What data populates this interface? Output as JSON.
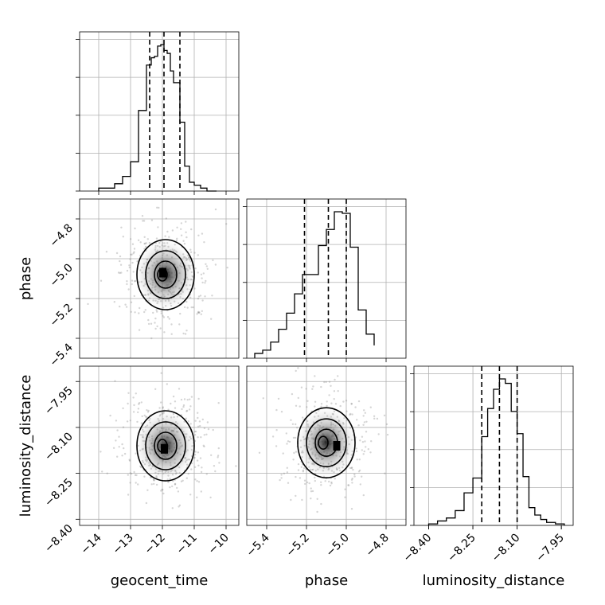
{
  "chart_data": {
    "type": "corner",
    "parameters": [
      {
        "name": "geocent_time",
        "xlim": [
          -14.6,
          -9.6
        ],
        "ticks": [
          -14,
          -13,
          -12,
          -11,
          -10
        ],
        "tick_labels": [
          "−14",
          "−13",
          "−12",
          "−11",
          "−10"
        ],
        "quantiles": [
          -12.4,
          -11.95,
          -11.45
        ],
        "hist": {
          "edges": [
            -14.0,
            -13.5,
            -13.25,
            -13.0,
            -12.75,
            -12.5,
            -12.35,
            -12.25,
            -12.15,
            -12.05,
            -11.95,
            -11.85,
            -11.75,
            -11.65,
            -11.55,
            -11.45,
            -11.3,
            -11.15,
            -11.0,
            -10.8,
            -10.6,
            -10.3
          ],
          "counts": [
            0.02,
            0.05,
            0.1,
            0.2,
            0.55,
            0.86,
            0.91,
            0.92,
            0.99,
            1.0,
            0.96,
            0.94,
            0.82,
            0.74,
            0.74,
            0.47,
            0.17,
            0.06,
            0.04,
            0.02,
            0.0
          ]
        }
      },
      {
        "name": "phase",
        "ylim": [
          -5.5,
          -4.7
        ],
        "xlim": [
          -5.5,
          -4.7
        ],
        "ticks": [
          -5.4,
          -5.2,
          -5.0,
          -4.8
        ],
        "tick_labels": [
          "−5.4",
          "−5.2",
          "−5.0",
          "−4.8"
        ],
        "quantiles": [
          -5.21,
          -5.09,
          -5.0
        ],
        "hist": {
          "edges": [
            -5.46,
            -5.42,
            -5.38,
            -5.34,
            -5.3,
            -5.26,
            -5.22,
            -5.18,
            -5.14,
            -5.1,
            -5.06,
            -5.02,
            -4.98,
            -4.94,
            -4.9,
            -4.86
          ],
          "counts": [
            0.03,
            0.05,
            0.1,
            0.18,
            0.28,
            0.4,
            0.52,
            0.52,
            0.7,
            0.8,
            0.91,
            0.9,
            0.69,
            0.3,
            0.15,
            0.08
          ]
        }
      },
      {
        "name": "luminosity_distance",
        "ylim": [
          -8.42,
          -7.9
        ],
        "xlim": [
          -8.45,
          -7.91
        ],
        "ticks": [
          -8.4,
          -8.25,
          -8.1,
          -7.95
        ],
        "tick_labels": [
          "−8.40",
          "−8.25",
          "−8.10",
          "−7.95"
        ],
        "quantiles": [
          -8.22,
          -8.16,
          -8.1
        ],
        "hist": {
          "edges": [
            -8.4,
            -8.37,
            -8.34,
            -8.31,
            -8.28,
            -8.25,
            -8.22,
            -8.2,
            -8.18,
            -8.16,
            -8.14,
            -8.12,
            -8.1,
            -8.08,
            -8.06,
            -8.04,
            -8.02,
            -8.0,
            -7.97,
            -7.94
          ],
          "counts": [
            0.01,
            0.03,
            0.05,
            0.1,
            0.22,
            0.32,
            0.6,
            0.79,
            0.92,
            0.99,
            0.96,
            0.77,
            0.62,
            0.33,
            0.12,
            0.07,
            0.04,
            0.02,
            0.01
          ]
        }
      }
    ],
    "pairs": [
      {
        "x": "geocent_time",
        "y": "phase",
        "center": [
          -11.9,
          -5.08
        ],
        "mode": [
          -12.0,
          -5.07
        ]
      },
      {
        "x": "geocent_time",
        "y": "luminosity_distance",
        "center": [
          -11.9,
          -8.16
        ],
        "mode": [
          -11.95,
          -8.17
        ]
      },
      {
        "x": "phase",
        "y": "luminosity_distance",
        "center": [
          -5.1,
          -8.15
        ],
        "mode": [
          -5.05,
          -8.16
        ]
      }
    ],
    "axis_labels": {
      "x": [
        "geocent_time",
        "phase",
        "luminosity_distance"
      ],
      "y": [
        "phase",
        "luminosity_distance"
      ]
    }
  }
}
